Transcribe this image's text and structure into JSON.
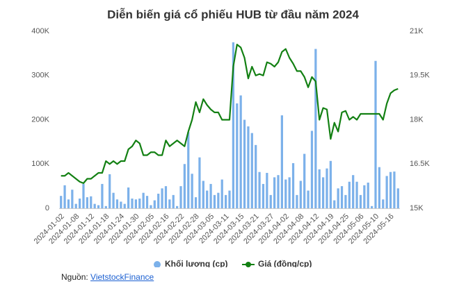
{
  "chart_data": {
    "type": "bar_line",
    "title": "Diễn biến giá cổ phiếu HUB từ đầu năm 2024",
    "categories": [
      "2024-01-02",
      null,
      null,
      null,
      "2024-01-08",
      null,
      null,
      null,
      "2024-01-12",
      null,
      null,
      null,
      "2024-01-18",
      null,
      null,
      null,
      "2024-01-24",
      null,
      null,
      null,
      "2024-01-30",
      null,
      null,
      null,
      "2024-02-05",
      null,
      null,
      null,
      "2024-02-16",
      null,
      null,
      null,
      "2024-02-22",
      null,
      null,
      null,
      "2024-02-28",
      null,
      null,
      null,
      "2024-03-05",
      null,
      null,
      null,
      "2024-03-11",
      null,
      null,
      null,
      "2024-03-15",
      null,
      null,
      null,
      "2024-03-21",
      null,
      null,
      null,
      "2024-03-27",
      null,
      null,
      null,
      "2024-04-02",
      null,
      null,
      null,
      "2024-04-08",
      null,
      null,
      null,
      "2024-04-12",
      null,
      null,
      null,
      "2024-04-19",
      null,
      null,
      null,
      "2024-04-25",
      null,
      null,
      null,
      "2024-05-06",
      null,
      null,
      null,
      "2024-05-10",
      null,
      null,
      null,
      "2024-05-16",
      null,
      null
    ],
    "series": [
      {
        "name": "Khối lượng (cp)",
        "type": "bar",
        "color": "#7cb1ea",
        "axis": "y",
        "values": [
          28000,
          52000,
          20000,
          42000,
          10000,
          22000,
          55000,
          25000,
          27000,
          10000,
          7000,
          55000,
          5000,
          77000,
          35000,
          20000,
          15000,
          10000,
          47000,
          22000,
          20000,
          22000,
          35000,
          28000,
          7000,
          18000,
          33000,
          45000,
          50000,
          20000,
          30000,
          5000,
          50000,
          100000,
          172000,
          78000,
          25000,
          115000,
          62000,
          40000,
          55000,
          30000,
          35000,
          65000,
          30000,
          40000,
          375000,
          237000,
          255000,
          200000,
          185000,
          170000,
          143000,
          82000,
          55000,
          80000,
          30000,
          70000,
          75000,
          210000,
          65000,
          70000,
          102000,
          30000,
          62000,
          123000,
          40000,
          175000,
          360000,
          88000,
          70000,
          90000,
          107000,
          18000,
          45000,
          50000,
          30000,
          60000,
          75000,
          60000,
          30000,
          52000,
          58000,
          5000,
          333000,
          93000,
          20000,
          73000,
          82000,
          83000,
          45000
        ]
      },
      {
        "name": "Giá (đồng/cp)",
        "type": "line",
        "color": "#138013",
        "axis": "y2",
        "values": [
          16100,
          16100,
          16200,
          16100,
          16000,
          15900,
          15850,
          16000,
          16000,
          16100,
          16200,
          16200,
          16600,
          16500,
          16600,
          16500,
          16600,
          16600,
          17000,
          17100,
          17300,
          17200,
          16800,
          16800,
          16900,
          16900,
          16800,
          16800,
          17300,
          17100,
          17200,
          17300,
          17200,
          17100,
          17600,
          18000,
          18600,
          18250,
          18700,
          18500,
          18350,
          18250,
          18250,
          18000,
          18000,
          18000,
          19800,
          20550,
          20450,
          20100,
          19400,
          19800,
          19500,
          19550,
          19500,
          19950,
          19900,
          19800,
          19950,
          20300,
          20400,
          20100,
          19900,
          19650,
          19650,
          19450,
          19100,
          19450,
          19300,
          18000,
          18400,
          18350,
          17350,
          17900,
          17600,
          18250,
          18300,
          18000,
          18100,
          18000,
          18200,
          18200,
          18200,
          18200,
          18200,
          18200,
          18000,
          18550,
          18900,
          19000,
          19050
        ]
      }
    ],
    "ylim": [
      0,
      400000
    ],
    "yticks": [
      0,
      {
        "value": 100000,
        "label": "100K"
      },
      {
        "value": 200000,
        "label": "200K"
      },
      {
        "value": 300000,
        "label": "300K"
      },
      {
        "value": 400000,
        "label": "400K"
      }
    ],
    "y2lim": [
      15000,
      21000
    ],
    "y2ticks": [
      {
        "value": 15000,
        "label": "15K"
      },
      {
        "value": 16500,
        "label": "16.5K"
      },
      {
        "value": 18000,
        "label": "18K"
      },
      {
        "value": 19500,
        "label": "19.5K"
      },
      {
        "value": 21000,
        "label": "21K"
      }
    ],
    "grid": false,
    "legend": "bottom",
    "source_label": "Nguồn:",
    "source_link": "VietstockFinance"
  }
}
